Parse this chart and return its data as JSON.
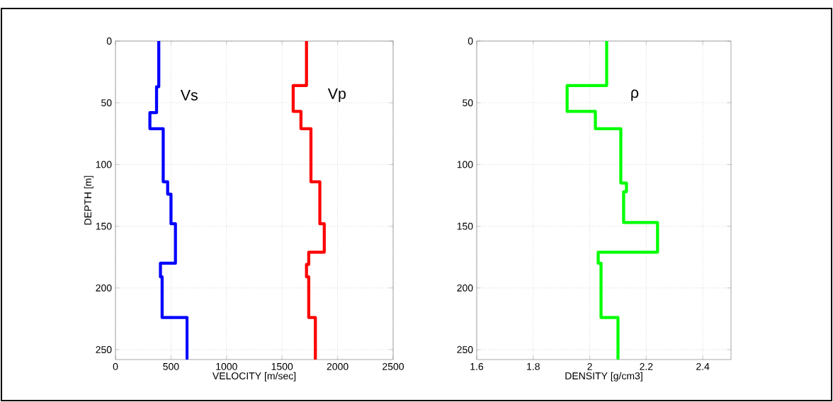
{
  "chart_data": [
    {
      "type": "line",
      "xlabel": "VELOCITY [m/sec]",
      "ylabel": "DEPTH [m]",
      "xlim": [
        0,
        2500
      ],
      "ylim": [
        258,
        0
      ],
      "xticks": [
        0,
        500,
        1000,
        1500,
        2000,
        2500
      ],
      "yticks": [
        0,
        50,
        100,
        150,
        200,
        250
      ],
      "grid": true,
      "series": [
        {
          "name": "Vs",
          "color": "#0000ff",
          "x": [
            390,
            390,
            370,
            370,
            310,
            310,
            430,
            430,
            470,
            470,
            500,
            500,
            540,
            540,
            405,
            405,
            420,
            420,
            645,
            645
          ],
          "values": [
            0,
            37,
            37,
            58,
            58,
            71,
            71,
            114,
            114,
            124,
            124,
            148,
            148,
            180,
            180,
            191,
            191,
            224,
            224,
            258
          ]
        },
        {
          "name": "Vp",
          "color": "#ff0000",
          "x": [
            1720,
            1720,
            1600,
            1600,
            1670,
            1670,
            1760,
            1760,
            1840,
            1840,
            1880,
            1880,
            1740,
            1740,
            1720,
            1720,
            1740,
            1740,
            1800,
            1800
          ],
          "values": [
            0,
            36,
            36,
            57,
            57,
            71,
            71,
            114,
            114,
            148,
            148,
            171,
            171,
            181,
            181,
            191,
            191,
            224,
            224,
            258
          ]
        }
      ]
    },
    {
      "type": "line",
      "xlabel": "DENSITY [g/cm3]",
      "xlim": [
        1.6,
        2.5
      ],
      "ylim": [
        258,
        0
      ],
      "xticks": [
        1.6,
        1.8,
        2,
        2.2,
        2.4
      ],
      "yticks": [
        0,
        50,
        100,
        150,
        200,
        250
      ],
      "grid": true,
      "series": [
        {
          "name": "ρ",
          "color": "#00ff00",
          "x": [
            2.06,
            2.06,
            1.92,
            1.92,
            2.02,
            2.02,
            2.11,
            2.11,
            2.13,
            2.13,
            2.12,
            2.12,
            2.24,
            2.24,
            2.03,
            2.03,
            2.04,
            2.04,
            2.1,
            2.1
          ],
          "values": [
            0,
            36,
            36,
            57,
            57,
            71,
            71,
            115,
            115,
            122,
            122,
            147,
            147,
            171,
            171,
            180,
            180,
            224,
            224,
            258
          ]
        }
      ]
    }
  ]
}
